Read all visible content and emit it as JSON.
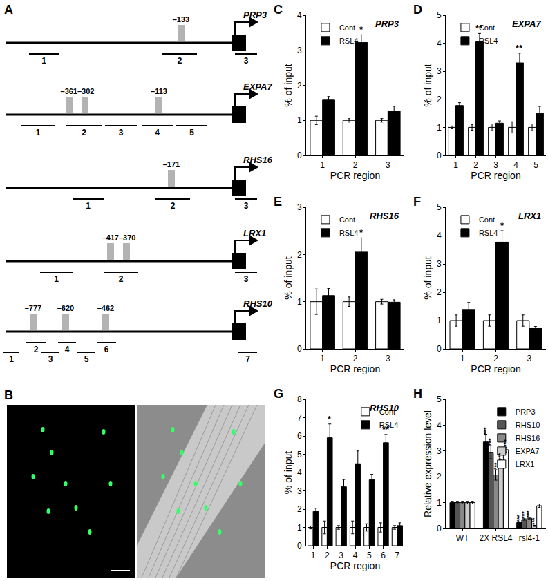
{
  "diagram": {
    "panel": "A",
    "genes": [
      {
        "name": "PRP3",
        "site_labels": [
          "–133"
        ],
        "regions": [
          "1",
          "2",
          "3"
        ]
      },
      {
        "name": "EXPA7",
        "site_labels": [
          "–361–302",
          "–113"
        ],
        "regions": [
          "1",
          "2",
          "3",
          "4",
          "5"
        ]
      },
      {
        "name": "RHS16",
        "site_labels": [
          "–171"
        ],
        "regions": [
          "1",
          "2",
          "3"
        ]
      },
      {
        "name": "LRX1",
        "site_labels": [
          "–417–370"
        ],
        "regions": [
          "1",
          "2",
          "3"
        ]
      },
      {
        "name": "RHS10",
        "site_labels": [
          "–777",
          "–620",
          "–462"
        ],
        "regions": [
          "1",
          "2",
          "3",
          "4",
          "5",
          "6",
          "7"
        ]
      }
    ]
  },
  "image": {
    "panel": "B"
  },
  "chart_data": [
    {
      "panel": "C",
      "type": "bar",
      "title": "PRP3",
      "x_label": "PCR region",
      "y_label": "% of input",
      "categories": [
        "1",
        "2",
        "3"
      ],
      "series": [
        {
          "name": "Cont",
          "color": "#ffffff",
          "values": [
            1,
            1,
            1
          ],
          "errors": [
            0.12,
            0.05,
            0.05
          ]
        },
        {
          "name": "RSL4",
          "color": "#000000",
          "values": [
            1.58,
            3.22,
            1.27
          ],
          "errors": [
            0.1,
            0.22,
            0.13
          ]
        }
      ],
      "annotations": [
        {
          "category": "2",
          "series": "RSL4",
          "text": "*"
        }
      ],
      "ylim": [
        0,
        4
      ],
      "yticks": [
        0,
        1,
        2,
        3,
        4
      ],
      "legend": "upper left"
    },
    {
      "panel": "D",
      "type": "bar",
      "title": "EXPA7",
      "x_label": "PCR region",
      "y_label": "% of input",
      "categories": [
        "1",
        "2",
        "3",
        "4",
        "5"
      ],
      "series": [
        {
          "name": "Cont",
          "color": "#ffffff",
          "values": [
            1,
            1,
            1,
            1,
            1
          ],
          "errors": [
            0.05,
            0.1,
            0.12,
            0.2,
            0.12
          ]
        },
        {
          "name": "RSL4",
          "color": "#000000",
          "values": [
            1.78,
            4.05,
            1.15,
            3.3,
            1.5
          ],
          "errors": [
            0.1,
            0.3,
            0.08,
            0.35,
            0.25
          ]
        }
      ],
      "annotations": [
        {
          "category": "2",
          "series": "RSL4",
          "text": "**"
        },
        {
          "category": "4",
          "series": "RSL4",
          "text": "**"
        }
      ],
      "ylim": [
        0,
        5
      ],
      "yticks": [
        0,
        1,
        2,
        3,
        4,
        5
      ],
      "legend": "upper left"
    },
    {
      "panel": "E",
      "type": "bar",
      "title": "RHS16",
      "x_label": "PCR region",
      "y_label": "% of input",
      "categories": [
        "1",
        "2",
        "3"
      ],
      "series": [
        {
          "name": "Cont",
          "color": "#ffffff",
          "values": [
            1,
            1,
            1
          ],
          "errors": [
            0.27,
            0.1,
            0.05
          ]
        },
        {
          "name": "RSL4",
          "color": "#000000",
          "values": [
            1.13,
            2.05,
            0.99
          ],
          "errors": [
            0.15,
            0.3,
            0.05
          ]
        }
      ],
      "annotations": [
        {
          "category": "2",
          "series": "RSL4",
          "text": "*"
        }
      ],
      "ylim": [
        0,
        3
      ],
      "yticks": [
        0,
        1,
        2,
        3
      ],
      "legend": "upper left"
    },
    {
      "panel": "F",
      "type": "bar",
      "title": "LRX1",
      "x_label": "PCR region",
      "y_label": "% of input",
      "categories": [
        "1",
        "2",
        "3"
      ],
      "series": [
        {
          "name": "Cont",
          "color": "#ffffff",
          "values": [
            1,
            1,
            1
          ],
          "errors": [
            0.2,
            0.2,
            0.2
          ]
        },
        {
          "name": "RSL4",
          "color": "#000000",
          "values": [
            1.37,
            3.77,
            0.72
          ],
          "errors": [
            0.27,
            0.4,
            0.07
          ]
        }
      ],
      "annotations": [
        {
          "category": "2",
          "series": "RSL4",
          "text": "*"
        }
      ],
      "ylim": [
        0,
        5
      ],
      "yticks": [
        0,
        1,
        2,
        3,
        4,
        5
      ],
      "legend": "upper left"
    },
    {
      "panel": "G",
      "type": "bar",
      "title": "RHS10",
      "x_label": "PCR region",
      "y_label": "% of input",
      "categories": [
        "1",
        "2",
        "3",
        "4",
        "5",
        "6",
        "7"
      ],
      "series": [
        {
          "name": "Cont",
          "color": "#ffffff",
          "values": [
            1,
            1,
            1,
            1,
            1,
            1,
            1
          ],
          "errors": [
            0.08,
            0.35,
            0.1,
            0.35,
            0.2,
            0.25,
            0.1
          ]
        },
        {
          "name": "RSL4",
          "color": "#000000",
          "values": [
            1.87,
            5.9,
            3.22,
            4.48,
            3.6,
            5.63,
            1.1
          ],
          "errors": [
            0.18,
            0.75,
            0.4,
            0.7,
            0.3,
            0.45,
            0.15
          ]
        }
      ],
      "annotations": [
        {
          "category": "2",
          "series": "RSL4",
          "text": "*"
        },
        {
          "category": "6",
          "series": "RSL4",
          "text": "**"
        }
      ],
      "ylim": [
        0,
        8
      ],
      "yticks": [
        0,
        1,
        2,
        3,
        4,
        5,
        6,
        7,
        8
      ],
      "legend": "upper right"
    },
    {
      "panel": "H",
      "type": "bar",
      "y_label": "Relative expression level",
      "categories": [
        "WT",
        "2X RSL4",
        "rsl4-1"
      ],
      "series": [
        {
          "name": "PRP3",
          "color": "#000000",
          "values": [
            1,
            3.35,
            0.23
          ],
          "errors": [
            0.05,
            0.3,
            0.02
          ]
        },
        {
          "name": "RHS10",
          "color": "#555555",
          "values": [
            1,
            2.95,
            0.35
          ],
          "errors": [
            0.05,
            0.25,
            0.03
          ]
        },
        {
          "name": "RHS16",
          "color": "#888888",
          "values": [
            1,
            2.07,
            0.4
          ],
          "errors": [
            0.05,
            0.2,
            0.03
          ]
        },
        {
          "name": "EXPA7",
          "color": "#cccccc",
          "values": [
            1,
            2.55,
            0.1
          ],
          "errors": [
            0.05,
            0.1,
            0.02
          ]
        },
        {
          "name": "LRX1",
          "color": "#ffffff",
          "values": [
            1,
            3.05,
            0.88
          ],
          "errors": [
            0.05,
            0.1,
            0.07
          ]
        }
      ],
      "annotations": [
        {
          "category": "2X RSL4",
          "series": "PRP3",
          "text": "***"
        },
        {
          "category": "2X RSL4",
          "series": "RHS10",
          "text": "***"
        },
        {
          "category": "2X RSL4",
          "series": "RHS16",
          "text": "***"
        },
        {
          "category": "2X RSL4",
          "series": "EXPA7",
          "text": "***"
        },
        {
          "category": "2X RSL4",
          "series": "LRX1",
          "text": "***"
        },
        {
          "category": "rsl4-1",
          "series": "PRP3",
          "text": "***"
        },
        {
          "category": "rsl4-1",
          "series": "RHS10",
          "text": "***"
        },
        {
          "category": "rsl4-1",
          "series": "RHS16",
          "text": "***"
        },
        {
          "category": "rsl4-1",
          "series": "EXPA7",
          "text": "***"
        }
      ],
      "ylim": [
        0,
        5
      ],
      "yticks": [
        0,
        1,
        2,
        3,
        4,
        5
      ],
      "legend": "upper right"
    }
  ]
}
